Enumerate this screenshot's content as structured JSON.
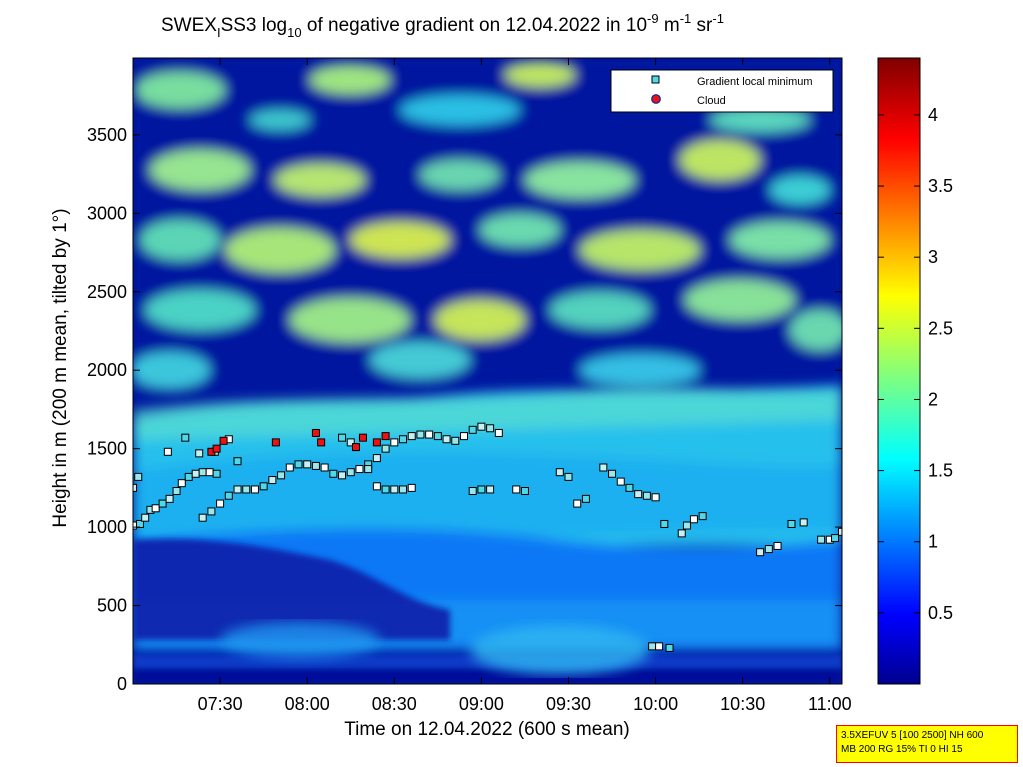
{
  "chart_data": {
    "type": "heatmap",
    "title": {
      "prefix": "SWEX",
      "sub1": "I",
      "middle": "SS3 log",
      "sub2": "10",
      "after": " of negative gradient on 12.04.2022 in 10",
      "sup1": "-9",
      "unit1": " m",
      "sup2": "-1",
      "unit2": " sr",
      "sup3": "-1"
    },
    "xlabel": "Time on 12.04.2022 (600 s mean)",
    "ylabel": "Height in m (200 m mean, tilted by 1°)",
    "x_ticks": [
      "07:30",
      "08:00",
      "08:30",
      "09:00",
      "09:30",
      "10:00",
      "10:30",
      "11:00"
    ],
    "x_tick_hours": [
      7.5,
      8.0,
      8.5,
      9.0,
      9.5,
      10.0,
      10.5,
      11.0
    ],
    "xlim_hours": [
      7.0,
      11.07
    ],
    "y_ticks": [
      "0",
      "500",
      "1000",
      "1500",
      "2000",
      "2500",
      "3000",
      "3500"
    ],
    "y_tick_values": [
      0,
      500,
      1000,
      1500,
      2000,
      2500,
      3000,
      3500
    ],
    "ylim": [
      0,
      3990
    ],
    "colorbar": {
      "ticks": [
        "0.5",
        "1",
        "1.5",
        "2",
        "2.5",
        "3",
        "3.5",
        "4"
      ],
      "tick_values": [
        0.5,
        1,
        1.5,
        2,
        2.5,
        3,
        3.5,
        4
      ],
      "range": [
        0,
        4.4
      ]
    },
    "legend": {
      "placement": "top-right",
      "entries": [
        {
          "label": "Gradient local minimum",
          "marker": "square",
          "color": "#4fd8e8"
        },
        {
          "label": "Cloud",
          "marker": "circle",
          "color": "#ee1111"
        }
      ]
    },
    "series": [
      {
        "name": "Gradient local minimum",
        "points": [
          [
            7.0,
            1010
          ],
          [
            7.04,
            1020
          ],
          [
            7.07,
            1060
          ],
          [
            7.1,
            1110
          ],
          [
            7.13,
            1120
          ],
          [
            7.17,
            1150
          ],
          [
            7.21,
            1180
          ],
          [
            7.25,
            1230
          ],
          [
            7.28,
            1280
          ],
          [
            7.32,
            1320
          ],
          [
            7.36,
            1340
          ],
          [
            7.4,
            1350
          ],
          [
            7.44,
            1350
          ],
          [
            7.48,
            1340
          ],
          [
            7.0,
            1250
          ],
          [
            7.03,
            1320
          ],
          [
            7.2,
            1480
          ],
          [
            7.3,
            1570
          ],
          [
            7.38,
            1470
          ],
          [
            7.47,
            1480
          ],
          [
            7.55,
            1560
          ],
          [
            7.6,
            1420
          ],
          [
            7.4,
            1060
          ],
          [
            7.45,
            1100
          ],
          [
            7.5,
            1150
          ],
          [
            7.55,
            1200
          ],
          [
            7.6,
            1240
          ],
          [
            7.65,
            1240
          ],
          [
            7.7,
            1240
          ],
          [
            7.75,
            1260
          ],
          [
            7.8,
            1300
          ],
          [
            7.85,
            1330
          ],
          [
            7.9,
            1380
          ],
          [
            7.95,
            1400
          ],
          [
            8.0,
            1400
          ],
          [
            8.05,
            1390
          ],
          [
            8.1,
            1380
          ],
          [
            8.15,
            1340
          ],
          [
            8.2,
            1330
          ],
          [
            8.25,
            1350
          ],
          [
            8.3,
            1370
          ],
          [
            8.35,
            1400
          ],
          [
            8.4,
            1440
          ],
          [
            8.45,
            1500
          ],
          [
            8.5,
            1540
          ],
          [
            8.55,
            1560
          ],
          [
            8.6,
            1580
          ],
          [
            8.65,
            1590
          ],
          [
            8.7,
            1590
          ],
          [
            8.75,
            1580
          ],
          [
            8.8,
            1560
          ],
          [
            8.85,
            1550
          ],
          [
            8.9,
            1580
          ],
          [
            8.95,
            1620
          ],
          [
            9.0,
            1640
          ],
          [
            9.05,
            1630
          ],
          [
            9.1,
            1600
          ],
          [
            8.2,
            1570
          ],
          [
            8.25,
            1540
          ],
          [
            8.35,
            1370
          ],
          [
            8.4,
            1260
          ],
          [
            8.45,
            1240
          ],
          [
            8.5,
            1240
          ],
          [
            8.55,
            1240
          ],
          [
            8.6,
            1250
          ],
          [
            9.0,
            1240
          ],
          [
            9.05,
            1240
          ],
          [
            8.95,
            1230
          ],
          [
            9.2,
            1240
          ],
          [
            9.25,
            1230
          ],
          [
            9.45,
            1350
          ],
          [
            9.5,
            1320
          ],
          [
            9.55,
            1150
          ],
          [
            9.6,
            1180
          ],
          [
            9.7,
            1380
          ],
          [
            9.75,
            1340
          ],
          [
            9.8,
            1290
          ],
          [
            9.85,
            1250
          ],
          [
            9.9,
            1210
          ],
          [
            9.95,
            1200
          ],
          [
            10.0,
            1190
          ],
          [
            10.05,
            1020
          ],
          [
            10.15,
            960
          ],
          [
            10.18,
            1010
          ],
          [
            10.22,
            1050
          ],
          [
            10.27,
            1070
          ],
          [
            10.6,
            840
          ],
          [
            10.65,
            860
          ],
          [
            10.7,
            880
          ],
          [
            10.78,
            1020
          ],
          [
            10.85,
            1030
          ],
          [
            10.95,
            920
          ],
          [
            11.0,
            920
          ],
          [
            11.03,
            930
          ],
          [
            11.07,
            970
          ],
          [
            9.98,
            240
          ],
          [
            10.02,
            240
          ],
          [
            10.08,
            230
          ]
        ]
      },
      {
        "name": "Cloud",
        "points": [
          [
            7.45,
            1480
          ],
          [
            7.48,
            1500
          ],
          [
            7.52,
            1550
          ],
          [
            7.82,
            1540
          ],
          [
            8.05,
            1600
          ],
          [
            8.08,
            1540
          ],
          [
            8.28,
            1510
          ],
          [
            8.32,
            1570
          ],
          [
            8.4,
            1540
          ],
          [
            8.45,
            1580
          ]
        ]
      }
    ]
  },
  "info_box": {
    "line1": "3.5XEFUV 5 [100 2500] NH 600",
    "line2": "MB 200 RG 15% TI 0 HI 15"
  }
}
